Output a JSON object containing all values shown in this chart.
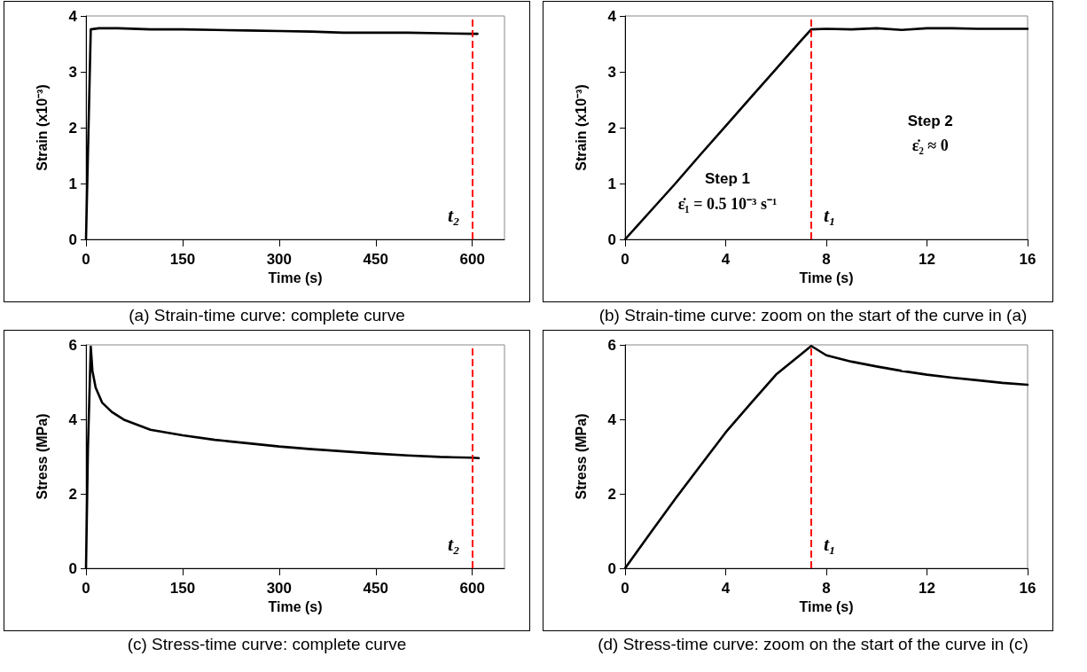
{
  "chart_data": [
    {
      "type": "line",
      "title": "(a) Strain-time curve: complete curve",
      "xlabel": "Time (s)",
      "ylabel": "Strain (x10⁻³)",
      "xlim": [
        0,
        650
      ],
      "xticks": [
        0,
        150,
        300,
        450,
        600
      ],
      "ylim": [
        0,
        4
      ],
      "yticks": [
        0,
        1,
        2,
        3,
        4
      ],
      "grid": false,
      "marker": "none",
      "line_style": "solid",
      "series": [
        {
          "color": "#000000",
          "x": [
            0,
            7.4,
            20,
            50,
            100,
            150,
            200,
            250,
            300,
            350,
            400,
            450,
            500,
            550,
            600,
            608
          ],
          "values": [
            0,
            3.76,
            3.78,
            3.78,
            3.76,
            3.76,
            3.75,
            3.74,
            3.73,
            3.72,
            3.7,
            3.7,
            3.7,
            3.69,
            3.68,
            3.68
          ]
        }
      ],
      "ref_lines": [
        {
          "axis": "x",
          "value": 600,
          "label": "t₂",
          "color": "#ff0000",
          "line_style": "dashed"
        }
      ]
    },
    {
      "type": "line",
      "title": "(b) Strain-time curve: zoom on the start of the curve in (a)",
      "xlabel": "Time (s)",
      "ylabel": "Strain (x10⁻³)",
      "xlim": [
        0,
        16
      ],
      "xticks": [
        0,
        4,
        8,
        12,
        16
      ],
      "ylim": [
        0,
        4
      ],
      "yticks": [
        0,
        1,
        2,
        3,
        4
      ],
      "grid": false,
      "marker": "none",
      "line_style": "solid",
      "series": [
        {
          "color": "#000000",
          "x": [
            0,
            1,
            2,
            3,
            4,
            5,
            6,
            7,
            7.4,
            8,
            9,
            10,
            11,
            12,
            13,
            14,
            15,
            16
          ],
          "values": [
            0,
            0.5,
            1.0,
            1.52,
            2.03,
            2.54,
            3.05,
            3.56,
            3.76,
            3.77,
            3.76,
            3.78,
            3.75,
            3.78,
            3.78,
            3.77,
            3.77,
            3.77
          ]
        }
      ],
      "ref_lines": [
        {
          "axis": "x",
          "value": 7.4,
          "label": "t₁",
          "color": "#ff0000",
          "line_style": "dashed"
        }
      ],
      "annotations": [
        "Step 1",
        "ε̇₁ = 0.5 10⁻³ s⁻¹",
        "Step 2",
        "ε̇₂ ≈ 0"
      ]
    },
    {
      "type": "line",
      "title": "(c) Stress-time curve: complete curve",
      "xlabel": "Time (s)",
      "ylabel": "Stress (MPa)",
      "xlim": [
        0,
        650
      ],
      "xticks": [
        0,
        150,
        300,
        450,
        600
      ],
      "ylim": [
        0,
        6
      ],
      "yticks": [
        0,
        2,
        4,
        6
      ],
      "grid": false,
      "marker": "none",
      "line_style": "solid",
      "series": [
        {
          "color": "#000000",
          "x": [
            0,
            3,
            7.4,
            10,
            15,
            25,
            40,
            60,
            100,
            150,
            200,
            250,
            300,
            350,
            400,
            450,
            500,
            550,
            600,
            610
          ],
          "values": [
            0,
            3.2,
            5.95,
            5.3,
            4.85,
            4.45,
            4.2,
            3.98,
            3.72,
            3.57,
            3.45,
            3.36,
            3.27,
            3.2,
            3.14,
            3.08,
            3.03,
            2.99,
            2.97,
            2.96
          ]
        }
      ],
      "ref_lines": [
        {
          "axis": "x",
          "value": 600,
          "label": "t₂",
          "color": "#ff0000",
          "line_style": "dashed"
        }
      ]
    },
    {
      "type": "line",
      "title": "(d) Stress-time curve: zoom on the start of the curve in (c)",
      "xlabel": "Time (s)",
      "ylabel": "Stress (MPa)",
      "xlim": [
        0,
        16
      ],
      "xticks": [
        0,
        4,
        8,
        12,
        16
      ],
      "ylim": [
        0,
        6
      ],
      "yticks": [
        0,
        2,
        4,
        6
      ],
      "grid": false,
      "marker": "none",
      "line_style": "solid",
      "series": [
        {
          "color": "#000000",
          "x": [
            0,
            1,
            2,
            3,
            4,
            5,
            6,
            7,
            7.4,
            8,
            9,
            10,
            11,
            12,
            13,
            14,
            15,
            16
          ],
          "values": [
            0,
            0.94,
            1.87,
            2.76,
            3.65,
            4.43,
            5.2,
            5.75,
            5.97,
            5.72,
            5.55,
            5.42,
            5.3,
            5.2,
            5.12,
            5.05,
            4.98,
            4.93
          ]
        }
      ],
      "ref_lines": [
        {
          "axis": "x",
          "value": 7.4,
          "label": "t₁",
          "color": "#ff0000",
          "line_style": "dashed"
        }
      ]
    }
  ]
}
